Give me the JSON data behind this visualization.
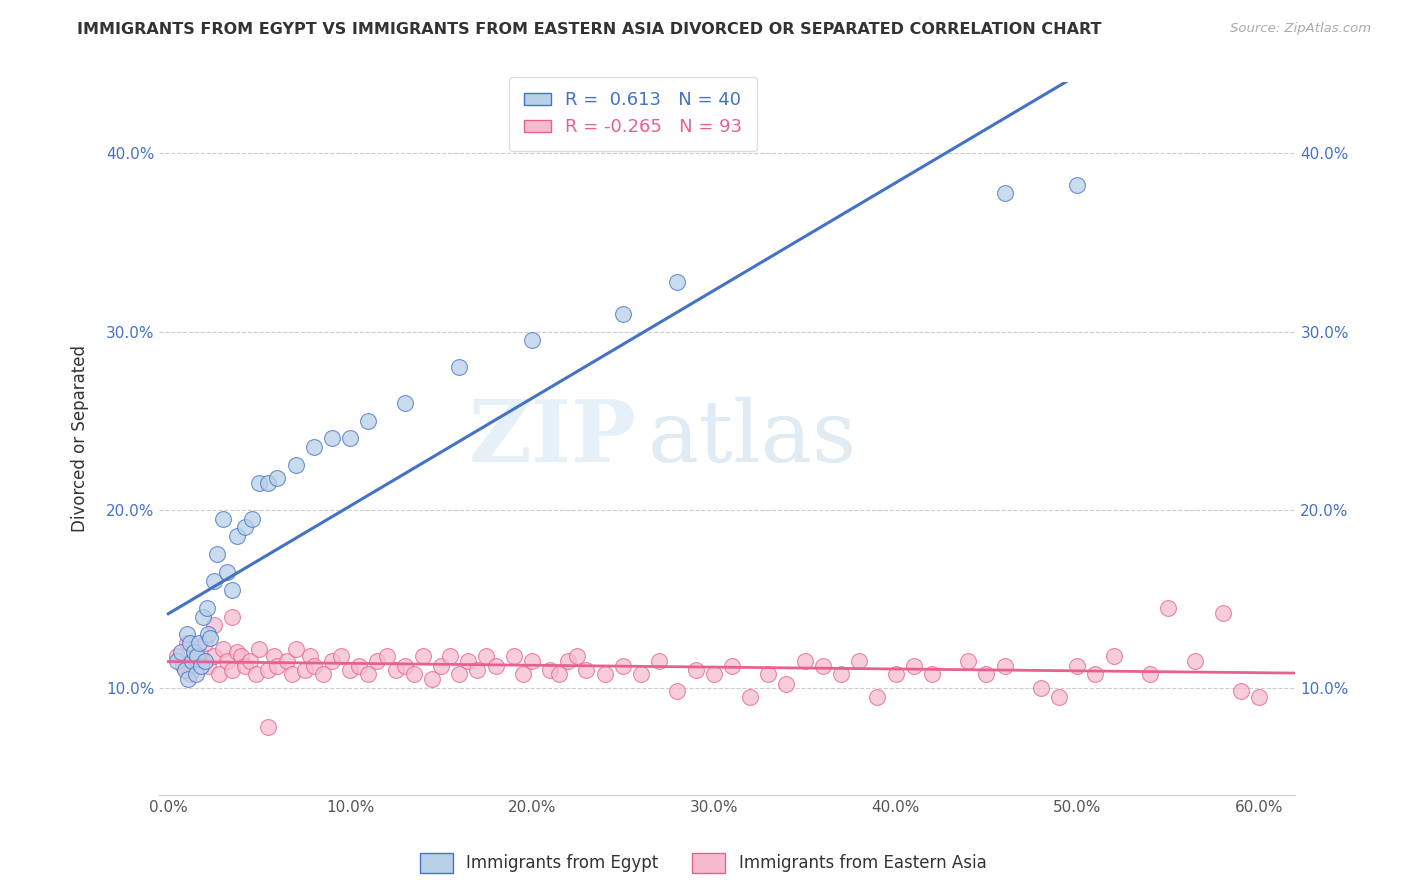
{
  "title": "IMMIGRANTS FROM EGYPT VS IMMIGRANTS FROM EASTERN ASIA DIVORCED OR SEPARATED CORRELATION CHART",
  "source": "Source: ZipAtlas.com",
  "ylabel": "Divorced or Separated",
  "xlabel_ticks": [
    "0.0%",
    "10.0%",
    "20.0%",
    "30.0%",
    "40.0%",
    "50.0%",
    "60.0%"
  ],
  "xlabel_vals": [
    0.0,
    0.1,
    0.2,
    0.3,
    0.4,
    0.5,
    0.6
  ],
  "ylabel_ticks": [
    "10.0%",
    "20.0%",
    "30.0%",
    "40.0%"
  ],
  "ylabel_vals": [
    0.1,
    0.2,
    0.3,
    0.4
  ],
  "xlim": [
    -0.005,
    0.62
  ],
  "ylim": [
    0.04,
    0.44
  ],
  "legend1_label": "R =  0.613   N = 40",
  "legend2_label": "R = -0.265   N = 93",
  "series1_color": "#b8d0e8",
  "series2_color": "#f5bcd0",
  "line1_color": "#4472C4",
  "line2_color": "#e86090",
  "watermark_zip": "ZIP",
  "watermark_atlas": "atlas",
  "blue_dots_x": [
    0.005,
    0.007,
    0.009,
    0.01,
    0.011,
    0.012,
    0.013,
    0.014,
    0.015,
    0.016,
    0.017,
    0.018,
    0.019,
    0.02,
    0.021,
    0.022,
    0.023,
    0.025,
    0.027,
    0.03,
    0.032,
    0.035,
    0.038,
    0.042,
    0.046,
    0.05,
    0.055,
    0.06,
    0.07,
    0.08,
    0.09,
    0.1,
    0.11,
    0.13,
    0.16,
    0.2,
    0.25,
    0.28,
    0.46,
    0.5
  ],
  "blue_dots_y": [
    0.115,
    0.12,
    0.11,
    0.13,
    0.105,
    0.125,
    0.115,
    0.12,
    0.108,
    0.118,
    0.125,
    0.112,
    0.14,
    0.115,
    0.145,
    0.13,
    0.128,
    0.16,
    0.175,
    0.195,
    0.165,
    0.155,
    0.185,
    0.19,
    0.195,
    0.215,
    0.215,
    0.218,
    0.225,
    0.235,
    0.24,
    0.24,
    0.25,
    0.26,
    0.28,
    0.295,
    0.31,
    0.328,
    0.378,
    0.382
  ],
  "pink_dots_x": [
    0.005,
    0.008,
    0.01,
    0.012,
    0.014,
    0.016,
    0.018,
    0.02,
    0.022,
    0.025,
    0.028,
    0.03,
    0.032,
    0.035,
    0.038,
    0.04,
    0.042,
    0.045,
    0.048,
    0.05,
    0.055,
    0.058,
    0.06,
    0.065,
    0.068,
    0.07,
    0.075,
    0.078,
    0.08,
    0.085,
    0.09,
    0.095,
    0.1,
    0.105,
    0.11,
    0.115,
    0.12,
    0.125,
    0.13,
    0.135,
    0.14,
    0.145,
    0.15,
    0.155,
    0.16,
    0.165,
    0.17,
    0.175,
    0.18,
    0.19,
    0.195,
    0.2,
    0.21,
    0.215,
    0.22,
    0.225,
    0.23,
    0.24,
    0.25,
    0.26,
    0.27,
    0.28,
    0.29,
    0.3,
    0.31,
    0.32,
    0.33,
    0.34,
    0.35,
    0.36,
    0.37,
    0.38,
    0.39,
    0.4,
    0.41,
    0.42,
    0.44,
    0.45,
    0.46,
    0.48,
    0.49,
    0.5,
    0.51,
    0.52,
    0.54,
    0.55,
    0.565,
    0.58,
    0.59,
    0.6,
    0.025,
    0.035,
    0.055
  ],
  "pink_dots_y": [
    0.118,
    0.112,
    0.125,
    0.108,
    0.122,
    0.115,
    0.118,
    0.125,
    0.112,
    0.118,
    0.108,
    0.122,
    0.115,
    0.11,
    0.12,
    0.118,
    0.112,
    0.115,
    0.108,
    0.122,
    0.11,
    0.118,
    0.112,
    0.115,
    0.108,
    0.122,
    0.11,
    0.118,
    0.112,
    0.108,
    0.115,
    0.118,
    0.11,
    0.112,
    0.108,
    0.115,
    0.118,
    0.11,
    0.112,
    0.108,
    0.118,
    0.105,
    0.112,
    0.118,
    0.108,
    0.115,
    0.11,
    0.118,
    0.112,
    0.118,
    0.108,
    0.115,
    0.11,
    0.108,
    0.115,
    0.118,
    0.11,
    0.108,
    0.112,
    0.108,
    0.115,
    0.098,
    0.11,
    0.108,
    0.112,
    0.095,
    0.108,
    0.102,
    0.115,
    0.112,
    0.108,
    0.115,
    0.095,
    0.108,
    0.112,
    0.108,
    0.115,
    0.108,
    0.112,
    0.1,
    0.095,
    0.112,
    0.108,
    0.118,
    0.108,
    0.145,
    0.115,
    0.142,
    0.098,
    0.095,
    0.135,
    0.14,
    0.078
  ]
}
